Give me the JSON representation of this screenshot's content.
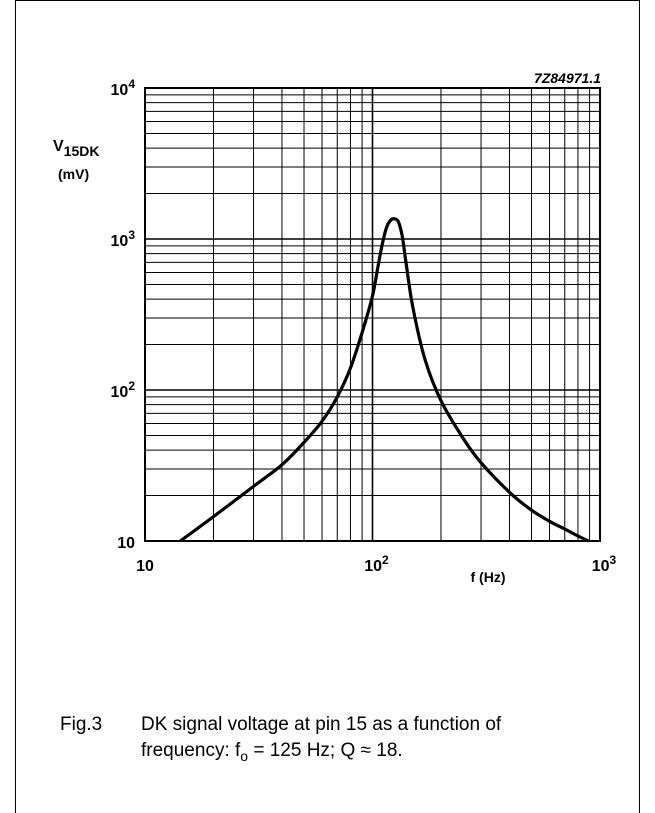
{
  "chart_data": {
    "type": "line",
    "figure_code": "7Z84971.1",
    "ylabel_main": "V",
    "ylabel_sub": "15DK",
    "ylabel_unit": "(mV)",
    "xlabel": "f (Hz)",
    "x_scale": "log",
    "y_scale": "log",
    "xlim": [
      10,
      1000
    ],
    "ylim": [
      10,
      10000
    ],
    "x_ticks": [
      {
        "base": "10",
        "exp": ""
      },
      {
        "base": "10",
        "exp": "2"
      },
      {
        "base": "10",
        "exp": "3"
      }
    ],
    "y_ticks": [
      {
        "base": "10",
        "exp": ""
      },
      {
        "base": "10",
        "exp": "2"
      },
      {
        "base": "10",
        "exp": "3"
      },
      {
        "base": "10",
        "exp": "4"
      }
    ],
    "grid": true,
    "series": [
      {
        "x": [
          14.3,
          20,
          30,
          40,
          50,
          60,
          70,
          80,
          90,
          100,
          105,
          110,
          115,
          120,
          125,
          130,
          135,
          140,
          150,
          170,
          200,
          250,
          300,
          400,
          500,
          600,
          700,
          800,
          890
        ],
        "y": [
          10,
          14.5,
          23,
          32,
          45,
          62,
          90,
          140,
          240,
          420,
          620,
          900,
          1180,
          1330,
          1360,
          1300,
          1050,
          720,
          360,
          160,
          85,
          48,
          33,
          21,
          16,
          13.5,
          12,
          10.8,
          10
        ]
      }
    ]
  },
  "caption": {
    "fig_label": "Fig.3",
    "line1": "DK signal voltage at pin 15 as a function of",
    "line2_prefix": "frequency: f",
    "line2_sub": "o",
    "line2_suffix": " = 125 Hz; Q ≈ 18."
  }
}
